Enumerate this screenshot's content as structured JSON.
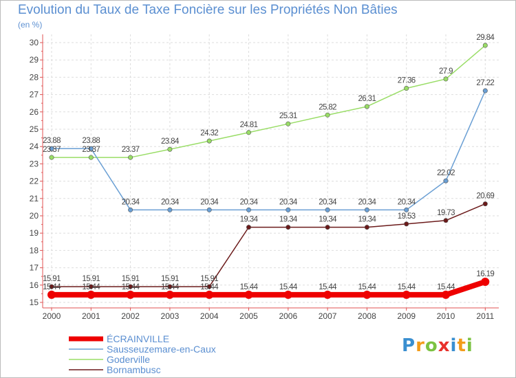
{
  "chart_data": {
    "type": "line",
    "title": "Evolution du Taux de Taxe Foncière sur les Propriétés Non Bâties",
    "unit_label": "(en %)",
    "xlabel": "",
    "ylabel": "(en %)",
    "ylim": [
      15,
      30
    ],
    "yticks": [
      15,
      16,
      17,
      18,
      19,
      20,
      21,
      22,
      23,
      24,
      25,
      26,
      27,
      28,
      29,
      30
    ],
    "categories": [
      "2000",
      "2001",
      "2002",
      "2003",
      "2004",
      "2005",
      "2006",
      "2007",
      "2008",
      "2009",
      "2010",
      "2011"
    ],
    "series": [
      {
        "name": "Bornambusc",
        "color": "#6b1a1a",
        "values": [
          15.91,
          15.91,
          15.91,
          15.91,
          15.91,
          19.34,
          19.34,
          19.34,
          19.34,
          19.53,
          19.73,
          20.69
        ],
        "labels": [
          "15.91",
          "15.91",
          "15.91",
          "15.91",
          "15.91",
          "19.34",
          "19.34",
          "19.34",
          "19.34",
          "19.53",
          "19.73",
          "20.69"
        ]
      },
      {
        "name": "Goderville",
        "color": "#99dd66",
        "values": [
          23.37,
          23.37,
          23.37,
          23.84,
          24.32,
          24.81,
          25.31,
          25.82,
          26.31,
          27.36,
          27.9,
          29.84
        ],
        "labels": [
          "23.37",
          "23.37",
          "23.37",
          "23.84",
          "24.32",
          "24.81",
          "25.31",
          "25.82",
          "26.31",
          "27.36",
          "27.9",
          "29.84"
        ]
      },
      {
        "name": "Sausseuzemare-en-Caux",
        "color": "#6a9fd4",
        "values": [
          23.88,
          23.88,
          20.34,
          20.34,
          20.34,
          20.34,
          20.34,
          20.34,
          20.34,
          20.34,
          22.02,
          27.22
        ],
        "labels": [
          "23.88",
          "23.88",
          "20.34",
          "20.34",
          "20.34",
          "20.34",
          "20.34",
          "20.34",
          "20.34",
          "20.34",
          "22.02",
          "27.22"
        ]
      },
      {
        "name": "ÉCRAINVILLE",
        "color": "#ee0000",
        "values": [
          15.44,
          15.44,
          15.44,
          15.44,
          15.44,
          15.44,
          15.44,
          15.44,
          15.44,
          15.44,
          15.44,
          16.19
        ],
        "labels": [
          "15.44",
          "15.44",
          "15.44",
          "15.44",
          "15.44",
          "15.44",
          "15.44",
          "15.44",
          "15.44",
          "15.44",
          "15.44",
          "16.19"
        ]
      }
    ],
    "legend": [
      "ÉCRAINVILLE",
      "Sausseuzemare-en-Caux",
      "Goderville",
      "Bornambusc"
    ],
    "legend_position": "bottom-left"
  },
  "brand": {
    "name": "Proxiti",
    "letters": [
      "P",
      "r",
      "o",
      "x",
      "i",
      "t",
      "i"
    ]
  }
}
